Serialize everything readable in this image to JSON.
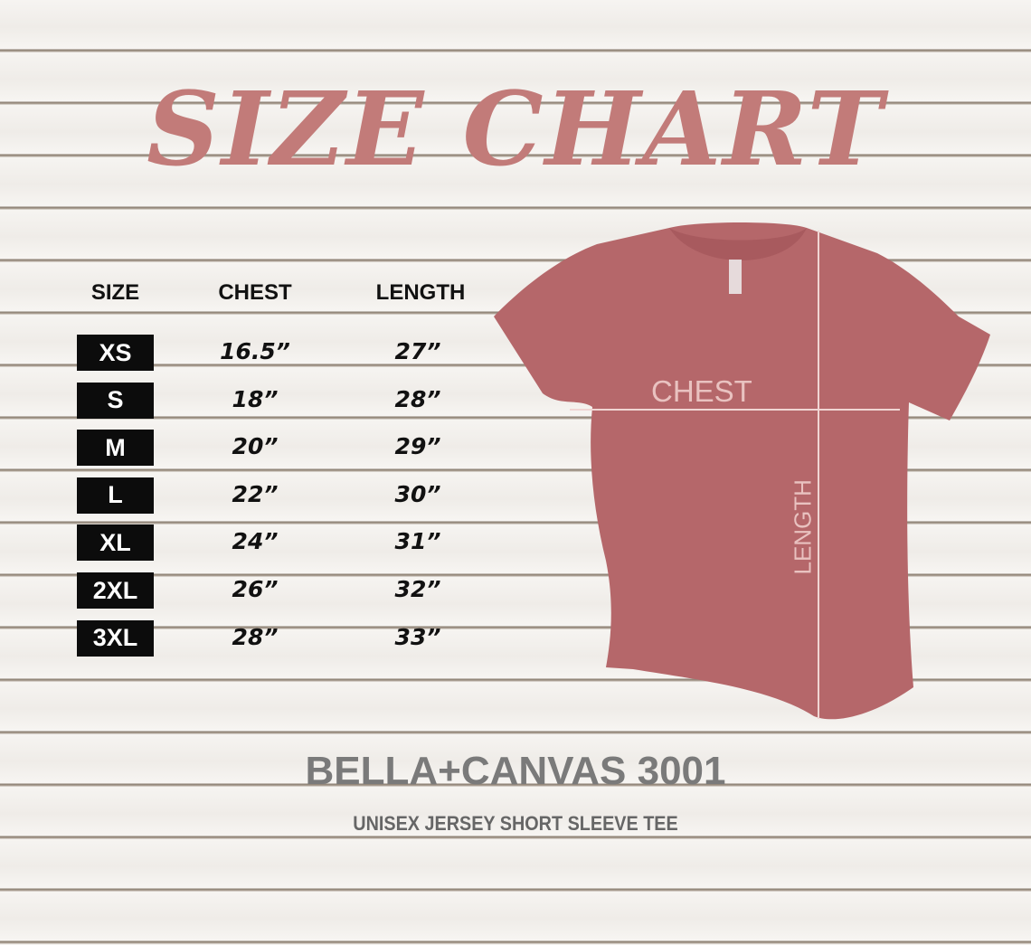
{
  "title": "SIZE CHART",
  "table": {
    "headers": [
      "SIZE",
      "CHEST",
      "LENGTH"
    ],
    "rows": [
      {
        "size": "XS",
        "chest": "16.5”",
        "length": "27”"
      },
      {
        "size": "S",
        "chest": "18”",
        "length": "28”"
      },
      {
        "size": "M",
        "chest": "20”",
        "length": "29”"
      },
      {
        "size": "L",
        "chest": "22”",
        "length": "30”"
      },
      {
        "size": "XL",
        "chest": "24”",
        "length": "31”"
      },
      {
        "size": "2XL",
        "chest": "26”",
        "length": "32”"
      },
      {
        "size": "3XL",
        "chest": "28”",
        "length": "33”"
      }
    ]
  },
  "shirt": {
    "chest_label": "CHEST",
    "length_label": "LENGTH",
    "color": "#b5676a"
  },
  "brand": "BELLA+CANVAS 3001",
  "subtitle": "UNISEX JERSEY SHORT SLEEVE TEE",
  "colors": {
    "title": "#c27b79",
    "size_badge": "#0c0c0c",
    "brand_text": "#7a7a7a"
  }
}
